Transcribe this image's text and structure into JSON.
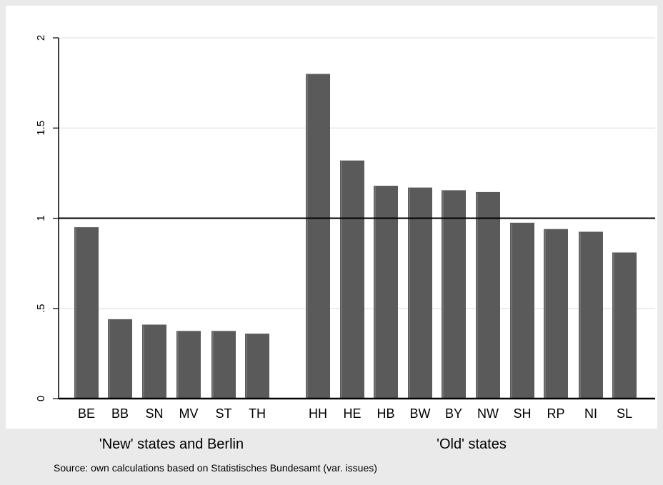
{
  "chart_data": {
    "type": "bar",
    "categories": [
      "BE",
      "BB",
      "SN",
      "MV",
      "ST",
      "TH",
      "HH",
      "HE",
      "HB",
      "BW",
      "BY",
      "NW",
      "SH",
      "RP",
      "NI",
      "SL"
    ],
    "values": [
      0.95,
      0.44,
      0.41,
      0.375,
      0.375,
      0.36,
      1.8,
      1.32,
      1.18,
      1.17,
      1.155,
      1.145,
      0.975,
      0.94,
      0.925,
      0.81
    ],
    "groups": [
      {
        "label": "'New' states and Berlin",
        "categories": [
          "BE",
          "BB",
          "SN",
          "MV",
          "ST",
          "TH"
        ]
      },
      {
        "label": "'Old' states",
        "categories": [
          "HH",
          "HE",
          "HB",
          "BW",
          "BY",
          "NW",
          "SH",
          "RP",
          "NI",
          "SL"
        ]
      }
    ],
    "yticks": [
      {
        "value": 0,
        "label": "0"
      },
      {
        "value": 0.5,
        "label": ".5"
      },
      {
        "value": 1,
        "label": "1"
      },
      {
        "value": 1.5,
        "label": "1.5"
      },
      {
        "value": 2,
        "label": "2"
      }
    ],
    "ylim": [
      0,
      2.1
    ],
    "reference_line": 1,
    "grid": true,
    "note": "Source: own calculations based on Statistisches Bundesamt (var. issues)",
    "colors": {
      "bar": "#5a5a5a",
      "plot_bg": "#ffffff",
      "outer_bg": "#eaeaea",
      "grid": "#e4e4e4",
      "axis": "#000000"
    }
  }
}
